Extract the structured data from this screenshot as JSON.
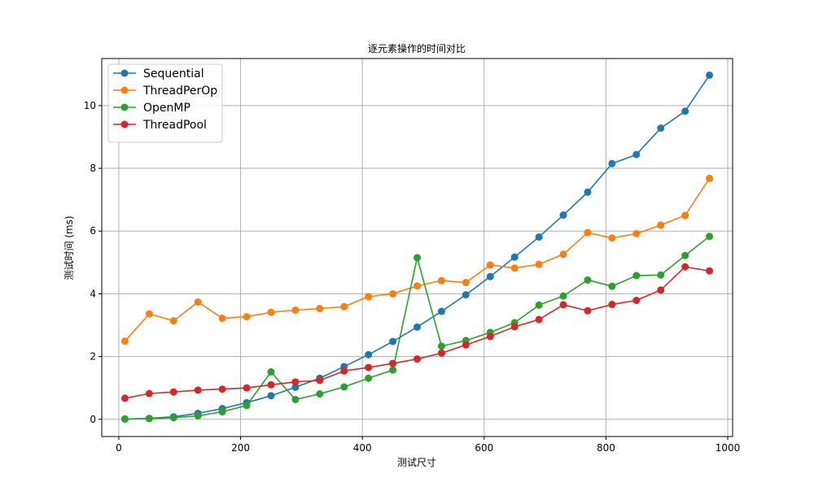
{
  "chart_data": {
    "type": "line",
    "title": "逐元素操作的时间对比",
    "xlabel": "测试尺寸",
    "ylabel": "测试时间 (ms)",
    "xlim": [
      -28,
      1008
    ],
    "ylim": [
      -0.55,
      11.5
    ],
    "xticks": [
      0,
      200,
      400,
      600,
      800,
      1000
    ],
    "yticks": [
      0,
      2,
      4,
      6,
      8,
      10
    ],
    "grid": true,
    "legend_position": "top-left",
    "x": [
      10,
      50,
      90,
      130,
      170,
      210,
      250,
      290,
      330,
      370,
      410,
      450,
      490,
      530,
      570,
      610,
      650,
      690,
      730,
      770,
      810,
      850,
      890,
      930,
      970
    ],
    "series": [
      {
        "name": "Sequential",
        "color": "#1f77b4",
        "values": [
          0.01,
          0.03,
          0.08,
          0.19,
          0.34,
          0.53,
          0.75,
          1.02,
          1.31,
          1.68,
          2.06,
          2.48,
          2.94,
          3.44,
          3.97,
          4.55,
          5.17,
          5.81,
          6.51,
          7.24,
          8.15,
          8.44,
          9.28,
          9.82,
          10.97
        ]
      },
      {
        "name": "ThreadPerOp",
        "color": "#ff7f0e",
        "values": [
          2.49,
          3.36,
          3.14,
          3.74,
          3.22,
          3.27,
          3.41,
          3.48,
          3.53,
          3.59,
          3.91,
          4.0,
          4.25,
          4.42,
          4.36,
          4.92,
          4.82,
          4.94,
          5.26,
          5.95,
          5.78,
          5.92,
          6.19,
          6.5,
          7.68
        ]
      },
      {
        "name": "OpenMP",
        "color": "#2ca02c",
        "values": [
          0.01,
          0.02,
          0.05,
          0.11,
          0.24,
          0.44,
          1.51,
          0.63,
          0.81,
          1.03,
          1.31,
          1.57,
          5.15,
          2.33,
          2.51,
          2.77,
          3.08,
          3.64,
          3.93,
          4.44,
          4.24,
          4.58,
          4.6,
          5.22,
          5.83
        ]
      },
      {
        "name": "ThreadPool",
        "color": "#d62728",
        "values": [
          0.67,
          0.82,
          0.87,
          0.93,
          0.96,
          1.0,
          1.1,
          1.19,
          1.24,
          1.54,
          1.65,
          1.78,
          1.92,
          2.11,
          2.37,
          2.64,
          2.95,
          3.18,
          3.65,
          3.46,
          3.66,
          3.79,
          4.12,
          4.86,
          4.73
        ]
      }
    ]
  }
}
